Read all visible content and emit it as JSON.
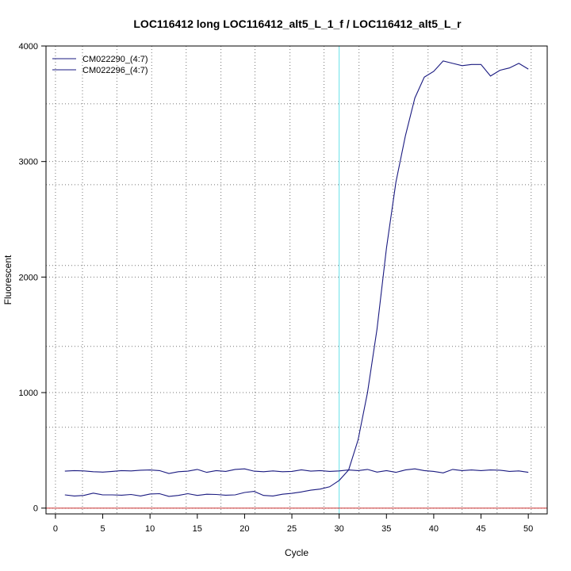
{
  "chart_data": {
    "type": "line",
    "title": "LOC116412 long LOC116412_alt5_L_1_f / LOC116412_alt5_L_r",
    "xlabel": "Cycle",
    "ylabel": "Fluorescent",
    "xlim": [
      -1,
      52
    ],
    "ylim": [
      -50,
      4000
    ],
    "xticks": [
      0,
      5,
      10,
      15,
      20,
      25,
      30,
      35,
      40,
      45,
      50
    ],
    "xtick_labels": [
      "0",
      "5",
      "10",
      "15",
      "20",
      "25",
      "30",
      "35",
      "40",
      "45",
      "50"
    ],
    "yticks": [
      0,
      1000,
      2000,
      3000,
      4000
    ],
    "ytick_labels": [
      "0",
      "1000",
      "2000",
      "3000",
      "4000"
    ],
    "x_grid": [
      0,
      2.857,
      6.5,
      10.176,
      13.824,
      17.5,
      21.1,
      24.8,
      28.4,
      32.1,
      35.7,
      39.4,
      43,
      46.7,
      50.3
    ],
    "y_grid": [
      0,
      700,
      1000,
      1400,
      2000,
      2100,
      2800,
      3000,
      3500,
      4000
    ],
    "grid": true,
    "legend_position": "top-left",
    "threshold_x": 30,
    "threshold_color": "#66e0e8",
    "baseline_y": 0,
    "baseline_color": "#cc3333",
    "series_color": "#1a1a80",
    "series": [
      {
        "name": "CM022290_(4:7)",
        "x": [
          1,
          2,
          3,
          4,
          5,
          6,
          7,
          8,
          9,
          10,
          11,
          12,
          13,
          14,
          15,
          16,
          17,
          18,
          19,
          20,
          21,
          22,
          23,
          24,
          25,
          26,
          27,
          28,
          29,
          30,
          31,
          32,
          33,
          34,
          35,
          36,
          37,
          38,
          39,
          40,
          41,
          42,
          43,
          44,
          45,
          46,
          47,
          48,
          49,
          50
        ],
        "y": [
          115,
          105,
          110,
          130,
          115,
          115,
          112,
          118,
          105,
          122,
          125,
          102,
          110,
          125,
          110,
          120,
          118,
          112,
          115,
          135,
          145,
          110,
          105,
          120,
          128,
          140,
          155,
          165,
          185,
          240,
          330,
          590,
          1000,
          1550,
          2250,
          2820,
          3220,
          3550,
          3730,
          3780,
          3870,
          3850,
          3830,
          3840,
          3840,
          3740,
          3790,
          3810,
          3850,
          3800
        ]
      },
      {
        "name": "CM022296_(4:7)",
        "x": [
          1,
          2,
          3,
          4,
          5,
          6,
          7,
          8,
          9,
          10,
          11,
          12,
          13,
          14,
          15,
          16,
          17,
          18,
          19,
          20,
          21,
          22,
          23,
          24,
          25,
          26,
          27,
          28,
          29,
          30,
          31,
          32,
          33,
          34,
          35,
          36,
          37,
          38,
          39,
          40,
          41,
          42,
          43,
          44,
          45,
          46,
          47,
          48,
          49,
          50
        ],
        "y": [
          320,
          325,
          322,
          315,
          312,
          318,
          325,
          322,
          328,
          330,
          325,
          300,
          315,
          320,
          335,
          310,
          325,
          318,
          335,
          340,
          320,
          315,
          322,
          315,
          318,
          332,
          320,
          325,
          318,
          322,
          330,
          325,
          335,
          312,
          325,
          310,
          330,
          340,
          325,
          318,
          305,
          335,
          325,
          330,
          325,
          330,
          328,
          318,
          322,
          310
        ]
      }
    ]
  }
}
